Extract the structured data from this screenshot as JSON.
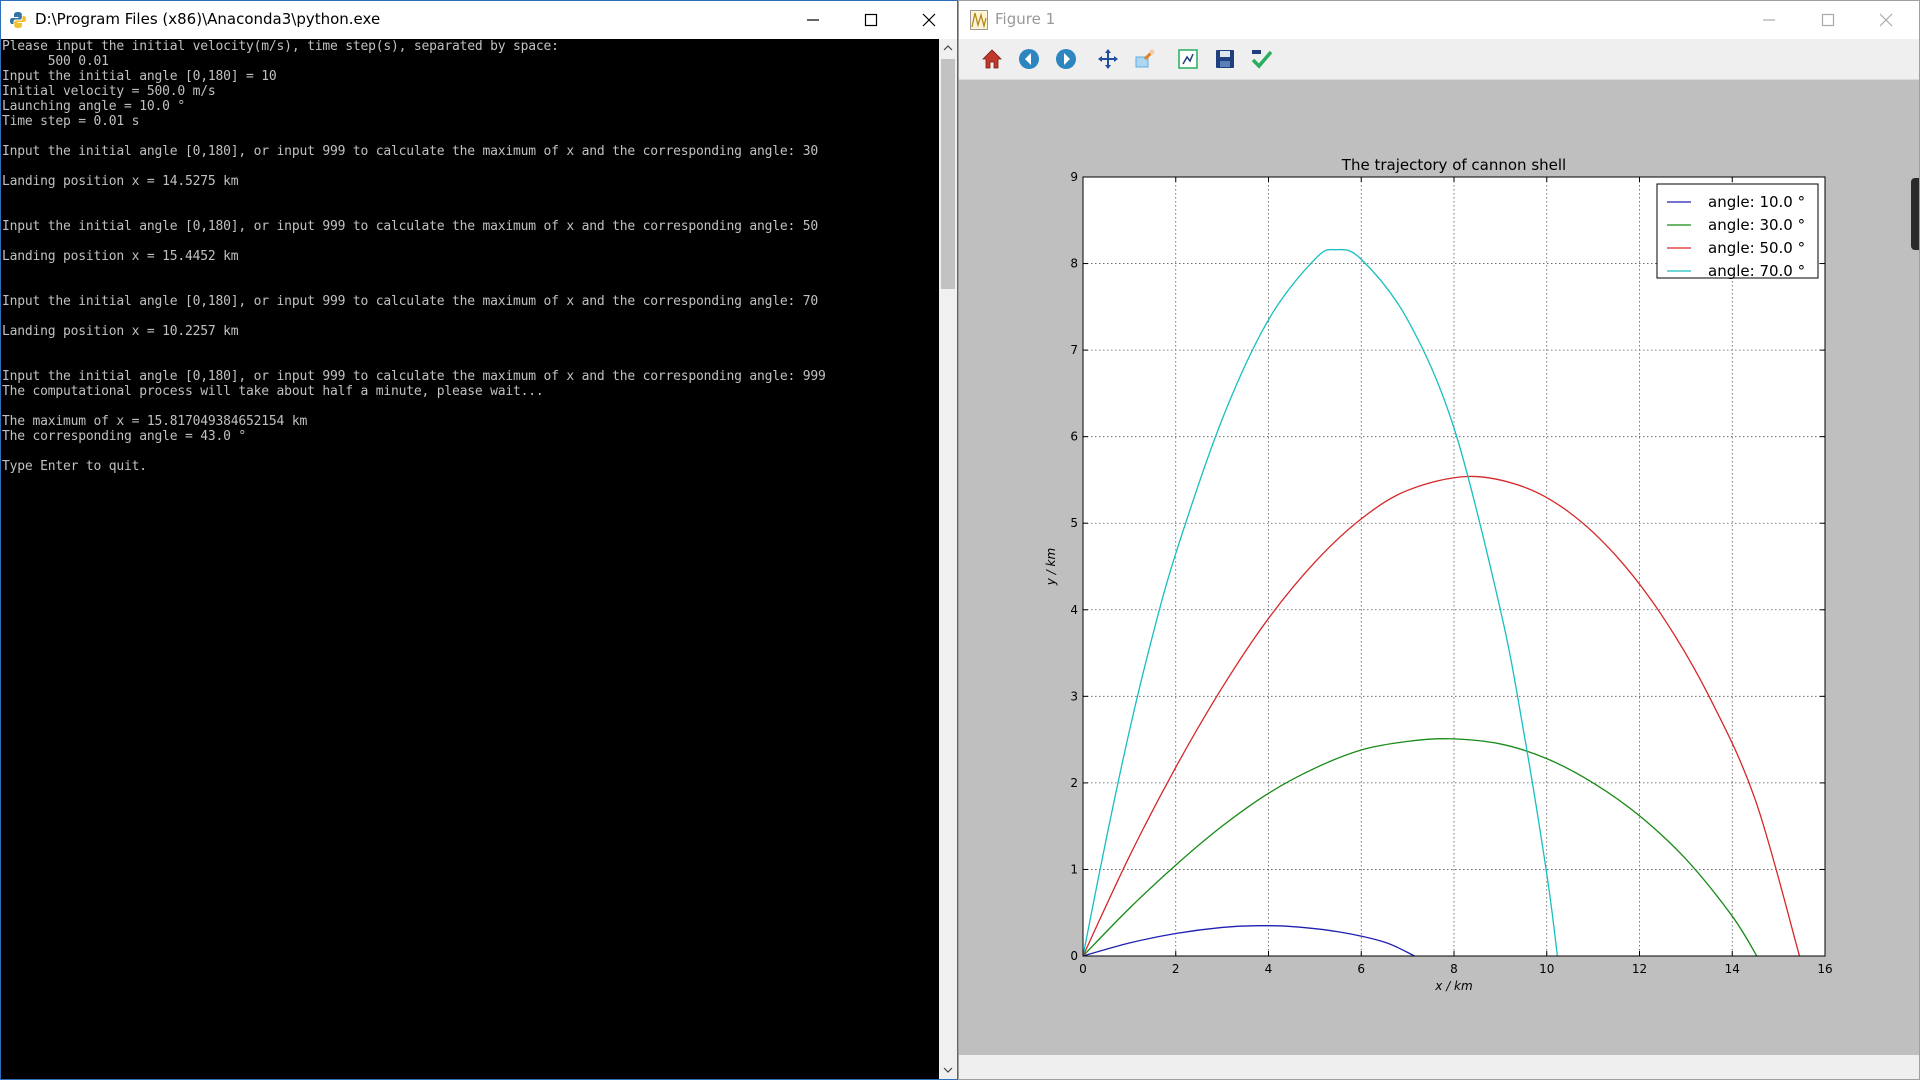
{
  "console": {
    "title": "D:\\Program Files (x86)\\Anaconda3\\python.exe",
    "lines": [
      "Please input the initial velocity(m/s), time step(s), separated by space:",
      "      500 0.01",
      "Input the initial angle [0,180] = 10",
      "Initial velocity = 500.0 m/s",
      "Launching angle = 10.0 °",
      "Time step = 0.01 s",
      "",
      "Input the initial angle [0,180], or input 999 to calculate the maximum of x and the corresponding angle: 30",
      "",
      "Landing position x = 14.5275 km",
      "",
      "",
      "Input the initial angle [0,180], or input 999 to calculate the maximum of x and the corresponding angle: 50",
      "",
      "Landing position x = 15.4452 km",
      "",
      "",
      "Input the initial angle [0,180], or input 999 to calculate the maximum of x and the corresponding angle: 70",
      "",
      "Landing position x = 10.2257 km",
      "",
      "",
      "Input the initial angle [0,180], or input 999 to calculate the maximum of x and the corresponding angle: 999",
      "The computational process will take about half a minute, please wait...",
      "",
      "The maximum of x = 15.817049384652154 km",
      "The corresponding angle = 43.0 °",
      "",
      "Type Enter to quit."
    ]
  },
  "figure_window": {
    "title": "Figure 1",
    "toolbar": [
      {
        "icon": "home-icon",
        "color": "#c0392b"
      },
      {
        "icon": "back-arrow-icon",
        "color": "#2e86c1"
      },
      {
        "icon": "forward-arrow-icon",
        "color": "#2e86c1"
      },
      {
        "icon": "pan-icon",
        "color": "#1f4e9e"
      },
      {
        "icon": "zoom-icon",
        "color": "#5dade2"
      },
      {
        "icon": "subplots-icon",
        "color": "#27ae60"
      },
      {
        "icon": "save-icon",
        "color": "#1f3f7f"
      },
      {
        "icon": "edit-axes-icon",
        "color": "#27ae60"
      }
    ]
  },
  "chart_data": {
    "type": "line",
    "title": "The trajectory of cannon shell",
    "xlabel": "x / km",
    "ylabel": "y / km",
    "xlim": [
      0,
      16
    ],
    "ylim": [
      0,
      9
    ],
    "xticks": [
      "0",
      "2",
      "4",
      "6",
      "8",
      "10",
      "12",
      "14",
      "16"
    ],
    "yticks": [
      "0",
      "1",
      "2",
      "3",
      "4",
      "5",
      "6",
      "7",
      "8",
      "9"
    ],
    "grid": true,
    "legend_position": "top-right",
    "series": [
      {
        "name": "angle: 10.0 °",
        "color": "#1f1fb4",
        "x": [
          0,
          1,
          2,
          3,
          3.8,
          4.5,
          5.5,
          6.5,
          7.15
        ],
        "y": [
          0,
          0.15,
          0.26,
          0.33,
          0.35,
          0.34,
          0.28,
          0.16,
          0
        ]
      },
      {
        "name": "angle: 30.0 °",
        "color": "#178a17",
        "x": [
          0,
          1,
          2,
          3,
          4,
          5,
          6,
          7,
          7.9,
          9,
          10,
          11,
          12,
          13,
          14,
          14.53
        ],
        "y": [
          0,
          0.55,
          1.05,
          1.5,
          1.88,
          2.17,
          2.38,
          2.48,
          2.51,
          2.45,
          2.28,
          2.0,
          1.62,
          1.12,
          0.46,
          0
        ]
      },
      {
        "name": "angle: 50.0 °",
        "color": "#d62728",
        "x": [
          0,
          1,
          2,
          3,
          4,
          5,
          6,
          7,
          8.3,
          9.5,
          10.5,
          11.5,
          12.5,
          13.5,
          14.5,
          15.45
        ],
        "y": [
          0,
          1.15,
          2.18,
          3.1,
          3.9,
          4.55,
          5.05,
          5.38,
          5.54,
          5.42,
          5.12,
          4.62,
          3.92,
          3.0,
          1.8,
          0
        ]
      },
      {
        "name": "angle: 70.0 °",
        "color": "#17bfbf",
        "x": [
          0,
          0.5,
          1,
          1.5,
          2,
          3,
          4,
          5,
          5.45,
          6,
          7,
          8,
          9,
          9.5,
          10,
          10.23
        ],
        "y": [
          0,
          1.35,
          2.6,
          3.7,
          4.65,
          6.2,
          7.35,
          8.05,
          8.16,
          8.05,
          7.35,
          6.1,
          4.0,
          2.6,
          0.95,
          0
        ]
      }
    ]
  }
}
